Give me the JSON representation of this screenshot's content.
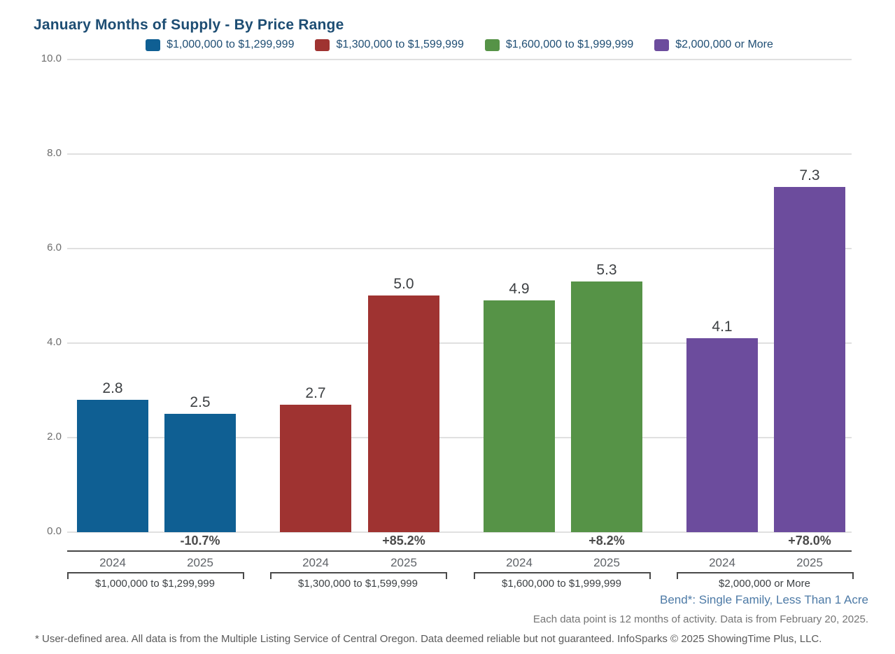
{
  "title": "January Months of Supply - By Price Range",
  "chart_data": {
    "type": "bar",
    "title": "January Months of Supply - By Price Range",
    "categories": [
      "2024",
      "2025"
    ],
    "y_ticks": [
      "10.0",
      "8.0",
      "6.0",
      "4.0",
      "2.0",
      "0.0"
    ],
    "ylim": [
      0,
      10
    ],
    "grid": true,
    "legend_position": "top",
    "series": [
      {
        "name": "$1,000,000 to $1,299,999",
        "color": "#0f5f93",
        "values": [
          2.8,
          2.5
        ],
        "value_labels": [
          "2.8",
          "2.5"
        ],
        "pct_change_label": "-10.7%"
      },
      {
        "name": "$1,300,000 to $1,599,999",
        "color": "#9f3331",
        "values": [
          2.7,
          5.0
        ],
        "value_labels": [
          "2.7",
          "5.0"
        ],
        "pct_change_label": "+85.2%"
      },
      {
        "name": "$1,600,000 to $1,999,999",
        "color": "#569347",
        "values": [
          4.9,
          5.3
        ],
        "value_labels": [
          "4.9",
          "5.3"
        ],
        "pct_change_label": "+8.2%"
      },
      {
        "name": "$2,000,000 or More",
        "color": "#6c4c9d",
        "values": [
          4.1,
          7.3
        ],
        "value_labels": [
          "4.1",
          "7.3"
        ],
        "pct_change_label": "+78.0%"
      }
    ]
  },
  "footnotes": {
    "area_line": "Bend*: Single Family, Less Than 1 Acre",
    "data_line": "Each data point is 12 months of activity. Data is from February 20, 2025.",
    "disclaimer": "* User-defined area. All data is from the Multiple Listing Service of Central Oregon. Data deemed reliable but not guaranteed. InfoSparks © 2025 ShowingTime Plus, LLC."
  },
  "colors": {
    "title": "#1d4d73",
    "legend_text": "#1f4e74",
    "gridline": "#e0e0e0",
    "tick_label": "#6d6d6d",
    "value_label": "#3d4043",
    "pct_label": "#4a4a4a",
    "year_label": "#5f6368",
    "group_label": "#3c4043",
    "bracket": "#4a4a4a",
    "axis_line": "#474747",
    "area_note": "#4d7aa6",
    "data_note": "#757575",
    "disclaimer": "#5a5a5a"
  }
}
